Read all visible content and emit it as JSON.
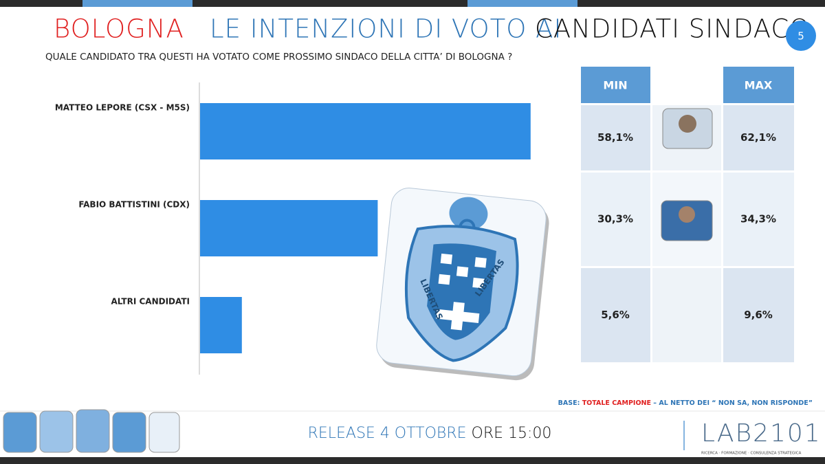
{
  "header": {
    "title_city": "BOLOGNA",
    "title_middle": "LE INTENZIONI DI VOTO AI",
    "title_end": "CANDIDATI SINDACO",
    "page_number": "5",
    "question": "QUALE CANDIDATO TRA QUESTI HA VOTATO COME PROSSIMO SINDACO DELLA CITTA’  DI BOLOGNA ?"
  },
  "chart_data": {
    "type": "bar",
    "orientation": "horizontal",
    "categories": [
      "MATTEO LEPORE (CSX - M5S)",
      "FABIO BATTISTINI (CDX)",
      "ALTRI CANDIDATI"
    ],
    "values": [
      60.1,
      32.3,
      7.6
    ],
    "color": "#2f8de4"
  },
  "table": {
    "columns": [
      "MIN",
      "MAX"
    ],
    "rows": [
      [
        "58,1%",
        "62,1%"
      ],
      [
        "30,3%",
        "34,3%"
      ],
      [
        "5,6%",
        "9,6%"
      ]
    ]
  },
  "emblem_text": "LIBERTAS",
  "footer": {
    "base_label": "BASE:",
    "base_sample": "TOTALE CAMPIONE",
    "base_note": "– AL NETTO DEI “ NON SA, NON RISPONDE”",
    "release": "RELEASE 4 OTTOBRE",
    "time": "ORE 15:00",
    "logo": "LAB2101",
    "logo_tagline": "RICERCA · FORMAZIONE · CONSULENZA STRATEGICA"
  }
}
